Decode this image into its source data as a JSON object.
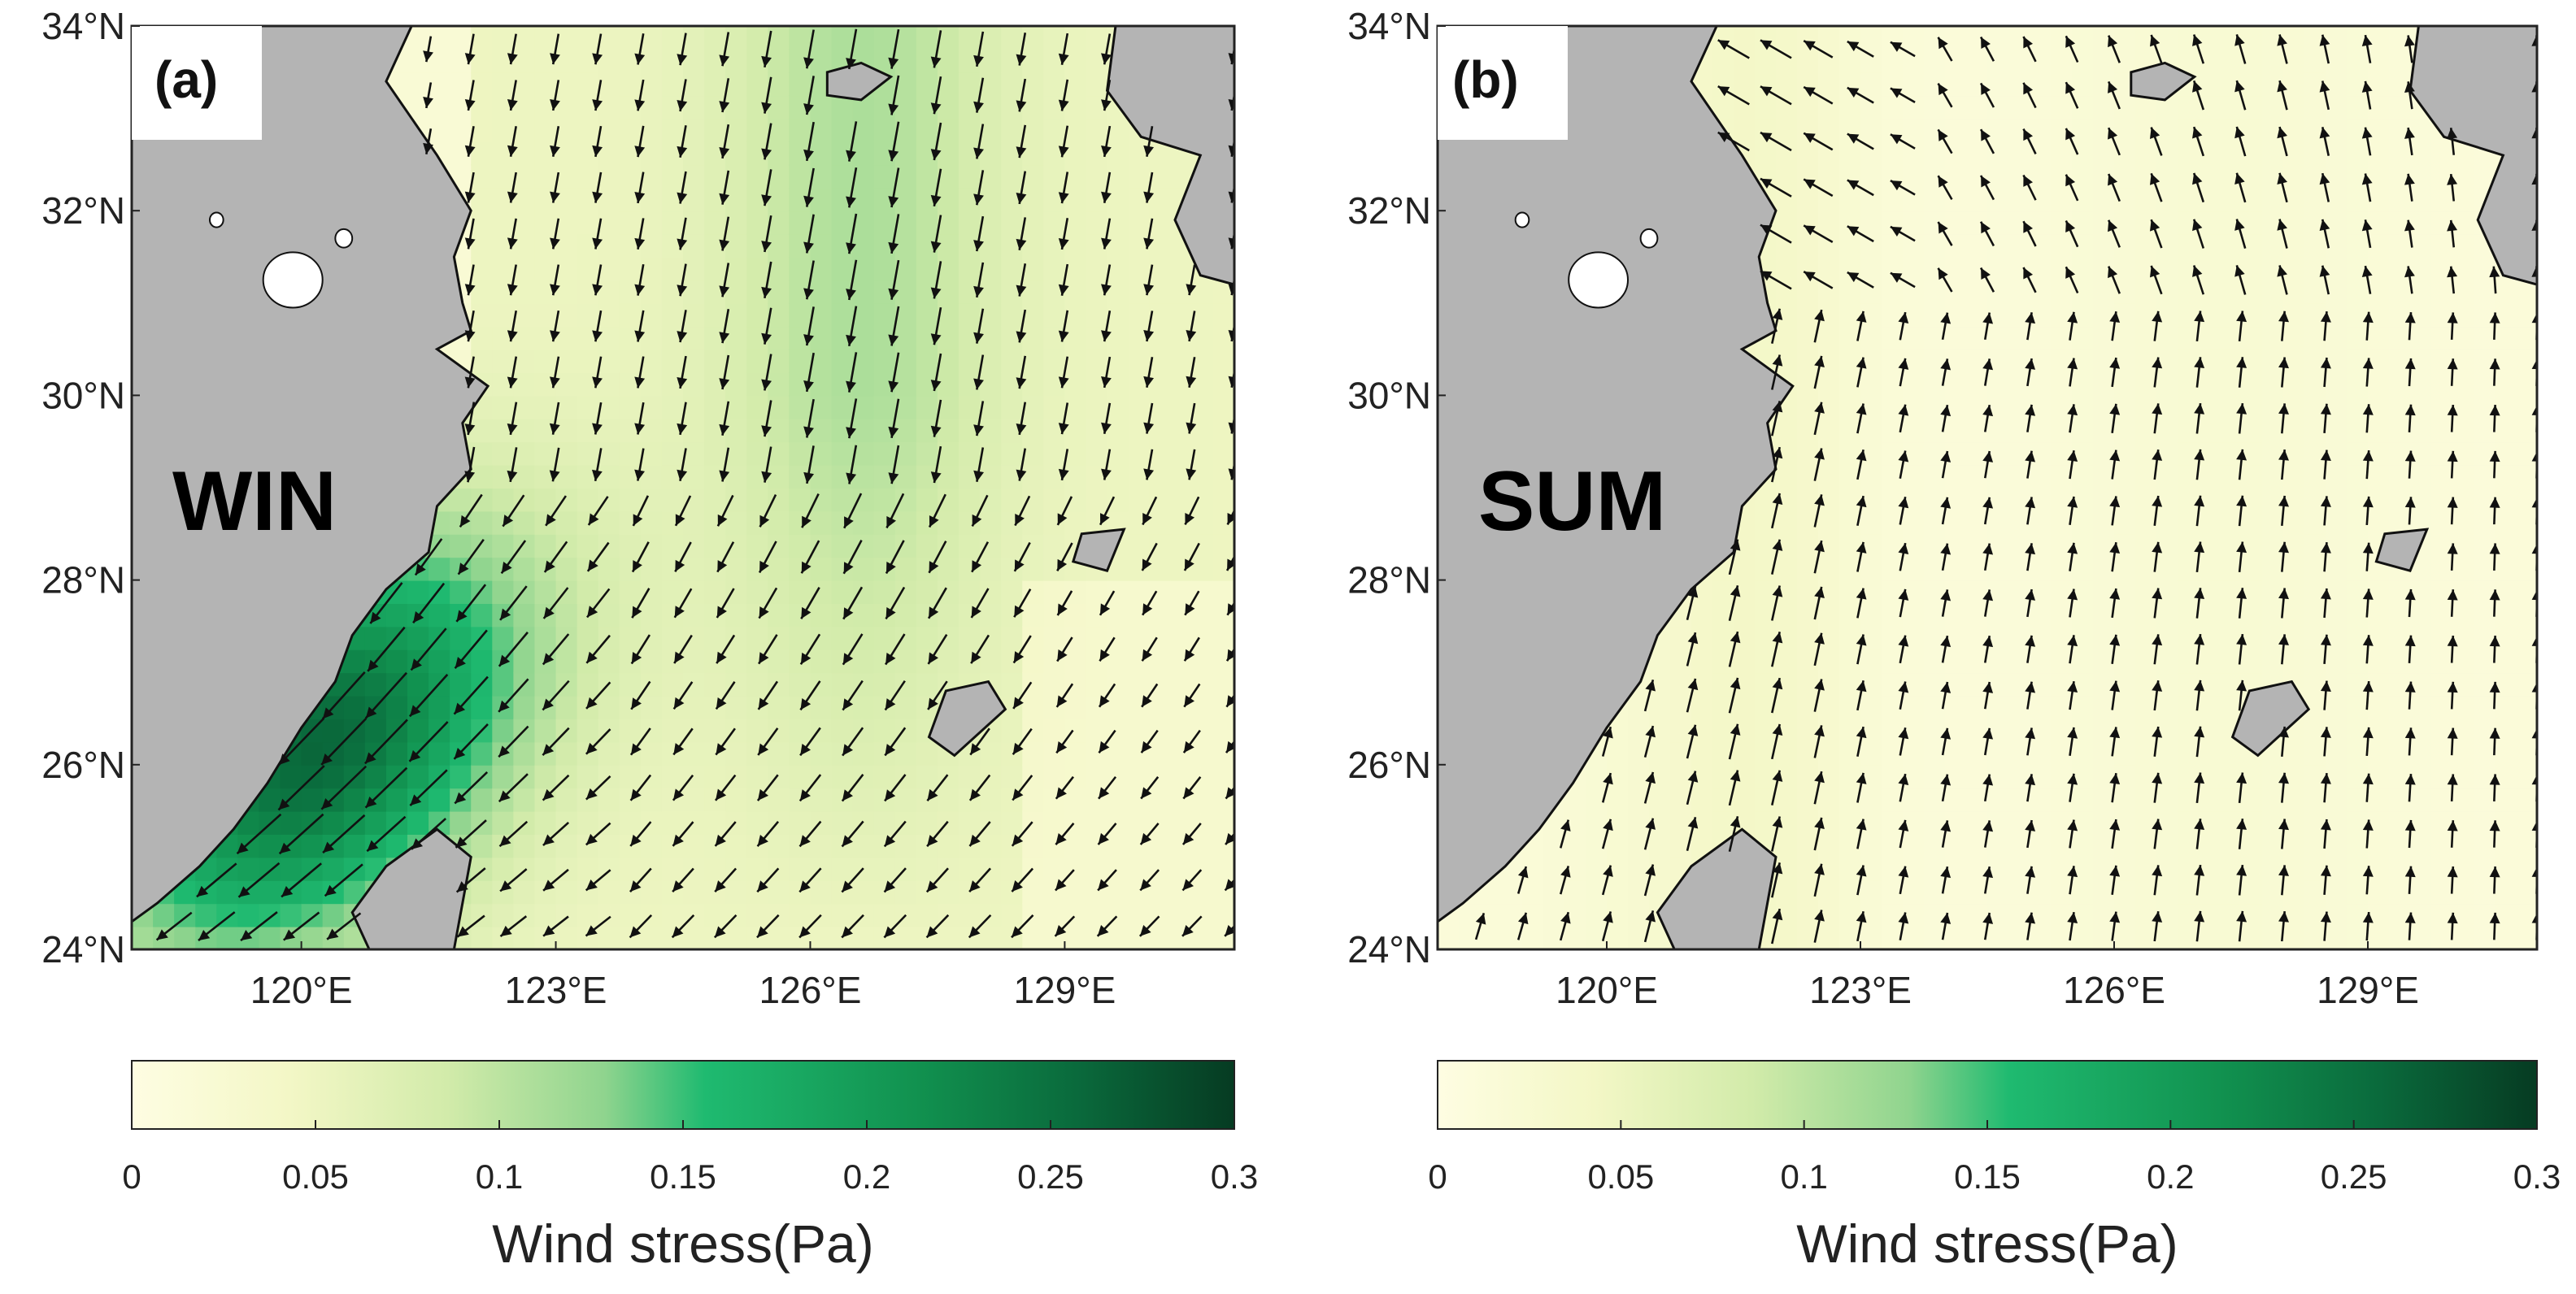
{
  "map_extent": {
    "lon": [
      118,
      131
    ],
    "lat": [
      24,
      34
    ]
  },
  "lat_ticks": [
    {
      "value": 34,
      "label": "34°N"
    },
    {
      "value": 32,
      "label": "32°N"
    },
    {
      "value": 30,
      "label": "30°N"
    },
    {
      "value": 28,
      "label": "28°N"
    },
    {
      "value": 26,
      "label": "26°N"
    },
    {
      "value": 24,
      "label": "24°N"
    }
  ],
  "lon_ticks": [
    {
      "value": 120,
      "label": "120°E"
    },
    {
      "value": 123,
      "label": "123°E"
    },
    {
      "value": 126,
      "label": "126°E"
    },
    {
      "value": 129,
      "label": "129°E"
    }
  ],
  "colors": {
    "land": "#b4b4b4",
    "coast": "#111111",
    "arrow": "#111111",
    "colormap": [
      "#fefde2",
      "#f3f7c6",
      "#d2ebaa",
      "#8fd48e",
      "#1fba70",
      "#11914f",
      "#0a6a3c",
      "#063b22"
    ]
  },
  "panels": [
    {
      "label": "(a)",
      "season": "WIN",
      "colorbar": {
        "min": 0,
        "max": 0.3,
        "ticks": [
          "0",
          "0.05",
          "0.1",
          "0.15",
          "0.2",
          "0.25",
          "0.3"
        ],
        "title": "Wind stress(Pa)"
      }
    },
    {
      "label": "(b)",
      "season": "SUM",
      "colorbar": {
        "min": 0,
        "max": 0.3,
        "ticks": [
          "0",
          "0.05",
          "0.1",
          "0.15",
          "0.2",
          "0.25",
          "0.3"
        ],
        "title": "Wind stress(Pa)"
      }
    }
  ]
}
